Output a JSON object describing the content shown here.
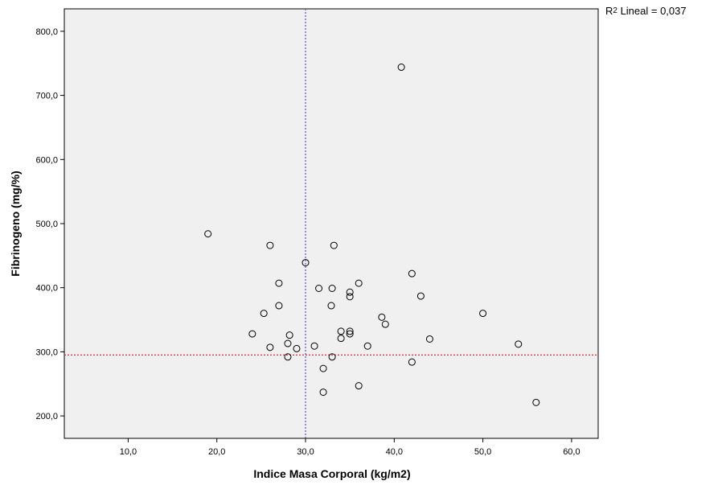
{
  "chart_data": {
    "type": "scatter",
    "xlabel": "Indice Masa Corporal (kg/m2)",
    "ylabel": "Fibrinogeno (mg/%)",
    "xlim": [
      2.8,
      63
    ],
    "ylim": [
      165,
      835
    ],
    "xticks": [
      10,
      20,
      30,
      40,
      50,
      60
    ],
    "yticks": [
      200,
      300,
      400,
      500,
      600,
      700,
      800
    ],
    "xtick_labels": [
      "10,0",
      "20,0",
      "30,0",
      "40,0",
      "50,0",
      "60,0"
    ],
    "ytick_labels": [
      "200,0",
      "300,0",
      "400,0",
      "500,0",
      "600,0",
      "700,0",
      "800,0"
    ],
    "reference_lines": {
      "x_mean": 30.0,
      "y_mean": 295
    },
    "colors": {
      "plot_background": "#f0f0f0",
      "x_ref_line": "#5555bb",
      "y_ref_line": "#cc3333",
      "marker": "#000000"
    },
    "grid": false,
    "points": [
      {
        "x": 19.0,
        "y": 484
      },
      {
        "x": 24.0,
        "y": 328
      },
      {
        "x": 25.3,
        "y": 360
      },
      {
        "x": 26.0,
        "y": 466
      },
      {
        "x": 26.0,
        "y": 307
      },
      {
        "x": 27.0,
        "y": 407
      },
      {
        "x": 27.0,
        "y": 372
      },
      {
        "x": 28.0,
        "y": 313
      },
      {
        "x": 28.0,
        "y": 292
      },
      {
        "x": 28.2,
        "y": 326
      },
      {
        "x": 29.0,
        "y": 305
      },
      {
        "x": 30.0,
        "y": 439
      },
      {
        "x": 31.0,
        "y": 309
      },
      {
        "x": 31.5,
        "y": 399
      },
      {
        "x": 32.0,
        "y": 274
      },
      {
        "x": 32.0,
        "y": 237
      },
      {
        "x": 32.9,
        "y": 372
      },
      {
        "x": 33.0,
        "y": 399
      },
      {
        "x": 33.0,
        "y": 292
      },
      {
        "x": 33.2,
        "y": 466
      },
      {
        "x": 34.0,
        "y": 332
      },
      {
        "x": 34.0,
        "y": 321
      },
      {
        "x": 35.0,
        "y": 393
      },
      {
        "x": 35.0,
        "y": 386
      },
      {
        "x": 35.0,
        "y": 332
      },
      {
        "x": 35.0,
        "y": 328
      },
      {
        "x": 36.0,
        "y": 407
      },
      {
        "x": 36.0,
        "y": 247
      },
      {
        "x": 37.0,
        "y": 309
      },
      {
        "x": 38.6,
        "y": 354
      },
      {
        "x": 39.0,
        "y": 343
      },
      {
        "x": 40.8,
        "y": 744
      },
      {
        "x": 42.0,
        "y": 422
      },
      {
        "x": 42.0,
        "y": 284
      },
      {
        "x": 43.0,
        "y": 387
      },
      {
        "x": 44.0,
        "y": 320
      },
      {
        "x": 50.0,
        "y": 360
      },
      {
        "x": 54.0,
        "y": 312
      },
      {
        "x": 56.0,
        "y": 221
      }
    ],
    "annotation": {
      "prefix": "R",
      "superscript": "2",
      "text": " Lineal = 0,037"
    }
  }
}
